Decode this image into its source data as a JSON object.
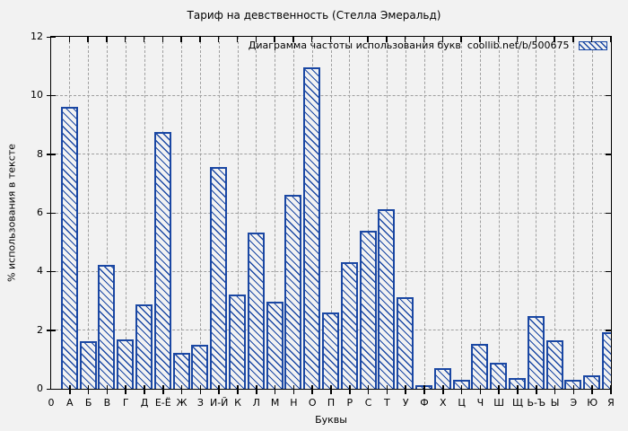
{
  "chart_data": {
    "type": "bar",
    "title": "Тариф на девственность (Стелла Эмеральд)",
    "legend": "Диаграмма частоты использования букв  coollib.net/b/500675",
    "xlabel": "Буквы",
    "ylabel": "% использования в тексте",
    "origin_label": "0",
    "ylim": [
      0,
      12
    ],
    "yticks": [
      0,
      2,
      4,
      6,
      8,
      10,
      12
    ],
    "grid": true,
    "legend_position": "top-right-inside",
    "bar_color": "#1a47a3",
    "grid_color": "#9f9f9f",
    "background_color": "#f2f2f2",
    "bar_style": "diagonal-hatch",
    "categories": [
      "А",
      "Б",
      "В",
      "Г",
      "Д",
      "Е-Ё",
      "Ж",
      "З",
      "И-Й",
      "К",
      "Л",
      "М",
      "Н",
      "О",
      "П",
      "Р",
      "С",
      "Т",
      "У",
      "Ф",
      "Х",
      "Ц",
      "Ч",
      "Ш",
      "Щ",
      "Ь-Ъ",
      "Ы",
      "Э",
      "Ю",
      "Я"
    ],
    "values": [
      9.6,
      1.62,
      4.22,
      1.67,
      2.85,
      8.75,
      1.2,
      1.5,
      7.55,
      3.2,
      5.3,
      2.95,
      6.6,
      10.95,
      2.6,
      4.3,
      5.38,
      6.12,
      3.1,
      0.12,
      0.7,
      0.28,
      1.53,
      0.86,
      0.34,
      2.48,
      1.65,
      0.28,
      0.45,
      1.9
    ]
  }
}
